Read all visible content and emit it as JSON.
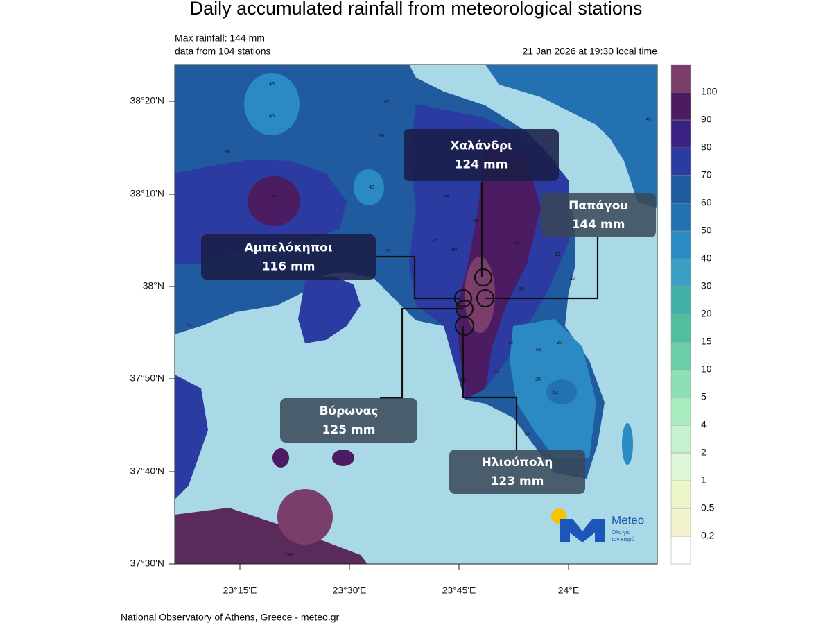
{
  "header": {
    "title": "Daily accumulated rainfall from meteorological stations",
    "max_rainfall": "Max rainfall: 144 mm",
    "stations": "data from 104 stations",
    "timestamp": "21 Jan 2026 at 19:30 local time"
  },
  "axes": {
    "lat_labels": [
      "38°20'N",
      "38°10'N",
      "38°N",
      "37°50'N",
      "37°40'N",
      "37°30'N"
    ],
    "lon_labels": [
      "23°15'E",
      "23°30'E",
      "23°45'E",
      "24°E"
    ]
  },
  "colorbar": {
    "labels": [
      0.2,
      0.5,
      1,
      2,
      4,
      5,
      10,
      15,
      20,
      30,
      40,
      50,
      60,
      70,
      80,
      90,
      100
    ],
    "colors": [
      "#ffffff",
      "#f3f4cf",
      "#ecf6c9",
      "#dff7d9",
      "#c6f1cf",
      "#a9ecc0",
      "#8ddfb6",
      "#6acfa6",
      "#4fbf9f",
      "#41b0a9",
      "#3a9fc2",
      "#2b89c4",
      "#2371b0",
      "#1f5b9e",
      "#2b3ba2",
      "#3a2283",
      "#4b1c61",
      "#7b3e6b"
    ]
  },
  "callouts": [
    {
      "name": "Χαλάνδρι",
      "value": "124 mm"
    },
    {
      "name": "Παπάγου",
      "value": "144 mm"
    },
    {
      "name": "Αμπελόκηποι",
      "value": "116 mm"
    },
    {
      "name": "Βύρωνας",
      "value": "125 mm"
    },
    {
      "name": "Ηλιούπολη",
      "value": "123 mm"
    }
  ],
  "station_values": [
    46,
    45,
    62,
    56,
    68,
    87,
    43,
    79,
    78,
    84,
    47,
    90,
    53,
    62,
    70,
    73,
    55,
    37,
    35,
    53,
    62,
    85,
    37,
    34,
    130,
    70,
    35,
    42,
    72
  ],
  "logo": {
    "brand": "Meteo",
    "tagline_1": "Όλα για",
    "tagline_2": "τον καιρό"
  },
  "footer": "National Observatory of Athens, Greece - meteo.gr"
}
